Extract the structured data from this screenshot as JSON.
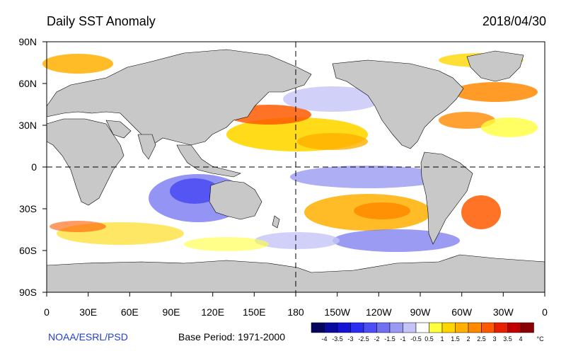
{
  "header": {
    "title": "Daily SST Anomaly",
    "date": "2018/04/30"
  },
  "footer": {
    "credit": "NOAA/ESRL/PSD",
    "base_period": "Base Period: 1971-2000"
  },
  "map": {
    "lat_labels": [
      "90N",
      "60N",
      "30N",
      "0",
      "30S",
      "60S",
      "90S"
    ],
    "lon_labels": [
      "0",
      "30E",
      "60E",
      "90E",
      "120E",
      "150E",
      "180",
      "150W",
      "120W",
      "90W",
      "60W",
      "30W",
      "0"
    ],
    "land_color": "#c8c8c8",
    "ocean_neutral_color": "#ffffff"
  },
  "colorbar": {
    "unit": "°C",
    "labels": [
      "-4",
      "-3.5",
      "-3",
      "-2.5",
      "-2",
      "-1.5",
      "-1",
      "-0.5",
      "0.5",
      "1",
      "1.5",
      "2",
      "2.5",
      "3",
      "3.5",
      "4"
    ],
    "colors": [
      "#05055e",
      "#0a0aa0",
      "#1414d6",
      "#2c2cf2",
      "#4d4df5",
      "#7070f0",
      "#9a9af2",
      "#c4c4f8",
      "#ffffff",
      "#ffff3c",
      "#ffd700",
      "#ffb000",
      "#ff8a00",
      "#ff5a00",
      "#e82000",
      "#c00000",
      "#8a0000"
    ]
  }
}
